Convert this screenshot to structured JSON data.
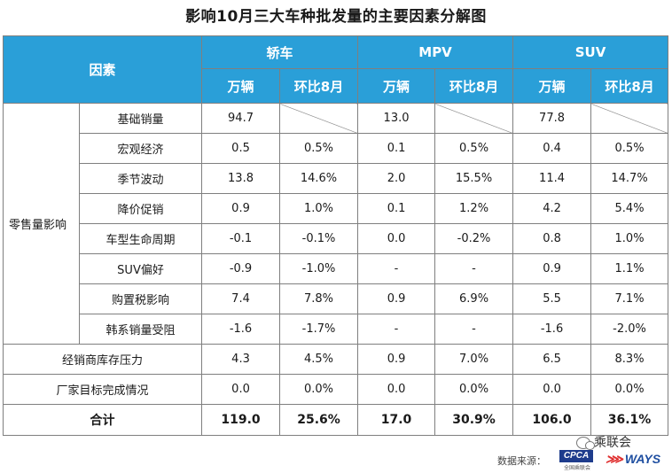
{
  "title": "影响10月三大车种批发量的主要因素分解图",
  "header": {
    "factor": "因素",
    "categories": [
      "轿车",
      "MPV",
      "SUV"
    ],
    "unit": "万辆",
    "mom": "环比8月"
  },
  "retail_group": "零售量影响",
  "rows": [
    {
      "label": "基础销量",
      "values": [
        "94.7",
        "",
        "13.0",
        "",
        "77.8",
        ""
      ]
    },
    {
      "label": "宏观经济",
      "values": [
        "0.5",
        "0.5%",
        "0.1",
        "0.5%",
        "0.4",
        "0.5%"
      ]
    },
    {
      "label": "季节波动",
      "values": [
        "13.8",
        "14.6%",
        "2.0",
        "15.5%",
        "11.4",
        "14.7%"
      ]
    },
    {
      "label": "降价促销",
      "values": [
        "0.9",
        "1.0%",
        "0.1",
        "1.2%",
        "4.2",
        "5.4%"
      ]
    },
    {
      "label": "车型生命周期",
      "values": [
        "-0.1",
        "-0.1%",
        "0.0",
        "-0.2%",
        "0.8",
        "1.0%"
      ]
    },
    {
      "label": "SUV偏好",
      "values": [
        "-0.9",
        "-1.0%",
        "-",
        "-",
        "0.9",
        "1.1%"
      ]
    },
    {
      "label": "购置税影响",
      "values": [
        "7.4",
        "7.8%",
        "0.9",
        "6.9%",
        "5.5",
        "7.1%"
      ]
    },
    {
      "label": "韩系销量受阻",
      "values": [
        "-1.6",
        "-1.7%",
        "-",
        "-",
        "-1.6",
        "-2.0%"
      ]
    }
  ],
  "other_rows": [
    {
      "label": "经销商库存压力",
      "values": [
        "4.3",
        "4.5%",
        "0.9",
        "7.0%",
        "6.5",
        "8.3%"
      ]
    },
    {
      "label": "厂家目标完成情况",
      "values": [
        "0.0",
        "0.0%",
        "0.0",
        "0.0%",
        "0.0",
        "0.0%"
      ]
    }
  ],
  "total": {
    "label": "合计",
    "values": [
      "119.0",
      "25.6%",
      "17.0",
      "30.9%",
      "106.0",
      "36.1%"
    ]
  },
  "footer": {
    "source_label": "数据来源：",
    "cpca_logo": "CPCA",
    "cpca_sub": "全国乘联会",
    "ways_logo": "WAYS",
    "wechat_name": "乘联会",
    "wechat_icon": "wechat-icon"
  },
  "colors": {
    "header_bg": "#2a9fd8",
    "border": "#7f7f7f",
    "cpca": "#1e3c8c",
    "ways": "#1e4ea0"
  }
}
